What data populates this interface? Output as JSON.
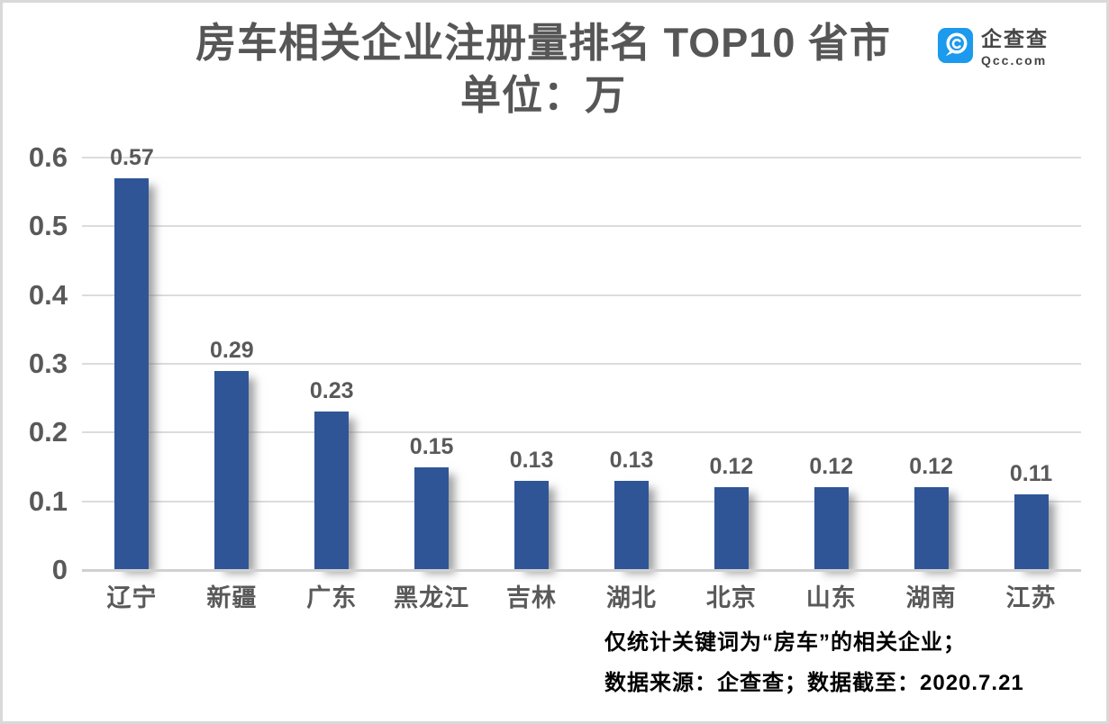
{
  "header": {
    "title_line1": "房车相关企业注册量排名 TOP10 省市",
    "title_line2": "单位：万"
  },
  "logo": {
    "name": "企查查",
    "domain": "Qcc.com",
    "brand_color": "#1B9AEE",
    "text_color": "#454545"
  },
  "chart_data": {
    "type": "bar",
    "title": "房车相关企业注册量排名 TOP10 省市",
    "subtitle": "单位：万",
    "unit": "万",
    "categories": [
      "辽宁",
      "新疆",
      "广东",
      "黑龙江",
      "吉林",
      "湖北",
      "北京",
      "山东",
      "湖南",
      "江苏"
    ],
    "values": [
      0.57,
      0.29,
      0.23,
      0.15,
      0.13,
      0.13,
      0.12,
      0.12,
      0.12,
      0.11
    ],
    "data_labels": [
      "0.57",
      "0.29",
      "0.23",
      "0.15",
      "0.13",
      "0.13",
      "0.12",
      "0.12",
      "0.12",
      "0.11"
    ],
    "ylim": [
      0,
      0.6
    ],
    "yticks": [
      "0.6",
      "0.5",
      "0.4",
      "0.3",
      "0.2",
      "0.1",
      "0"
    ],
    "ytick_values": [
      0.6,
      0.5,
      0.4,
      0.3,
      0.2,
      0.1,
      0
    ],
    "grid": true,
    "legend_position": "none",
    "bar_color": "#2F5597",
    "label_color": "#595959",
    "gridline_color": "#dcdcdc"
  },
  "footnotes": {
    "line1": "仅统计关键词为“房车”的相关企业；",
    "line2": "数据来源：企查查；数据截至：2020.7.21"
  }
}
